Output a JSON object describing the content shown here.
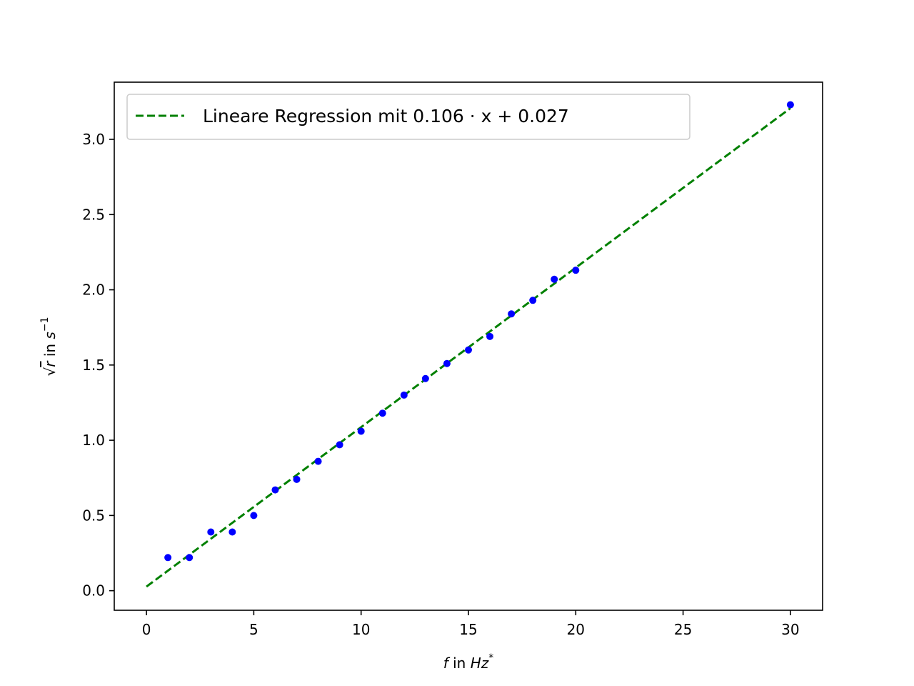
{
  "chart_data": {
    "type": "scatter",
    "xlabel": {
      "var": "f",
      "text": " in ",
      "unit": "Hz",
      "sup": "*"
    },
    "ylabel": {
      "root": "√",
      "var": "r",
      "text": " in ",
      "unit": "s",
      "sup": "−1"
    },
    "xlim": [
      -1.5,
      31.5
    ],
    "ylim": [
      -0.13,
      3.38
    ],
    "x_ticks": [
      0,
      5,
      10,
      15,
      20,
      25,
      30
    ],
    "x_tick_labels": [
      "0",
      "5",
      "10",
      "15",
      "20",
      "25",
      "30"
    ],
    "y_ticks": [
      0.0,
      0.5,
      1.0,
      1.5,
      2.0,
      2.5,
      3.0
    ],
    "y_tick_labels": [
      "0.0",
      "0.5",
      "1.0",
      "1.5",
      "2.0",
      "2.5",
      "3.0"
    ],
    "grid": false,
    "legend_position": "top-left",
    "legend": {
      "label": "Lineare Regression mit 0.106 · x + 0.027"
    },
    "series": [
      {
        "kind": "scatter",
        "color": "#0000ff",
        "x": [
          1,
          2,
          3,
          4,
          5,
          6,
          7,
          8,
          9,
          10,
          11,
          12,
          13,
          14,
          15,
          16,
          17,
          18,
          19,
          20,
          30
        ],
        "y": [
          0.22,
          0.22,
          0.39,
          0.39,
          0.5,
          0.67,
          0.74,
          0.86,
          0.97,
          1.06,
          1.18,
          1.3,
          1.41,
          1.51,
          1.6,
          1.69,
          1.84,
          1.93,
          2.07,
          2.13,
          3.23
        ]
      },
      {
        "kind": "line",
        "name": "Lineare Regression mit 0.106 · x + 0.027",
        "color": "#008000",
        "dashed": true,
        "slope": 0.106,
        "intercept": 0.027,
        "x_range": [
          0,
          30
        ]
      }
    ]
  }
}
